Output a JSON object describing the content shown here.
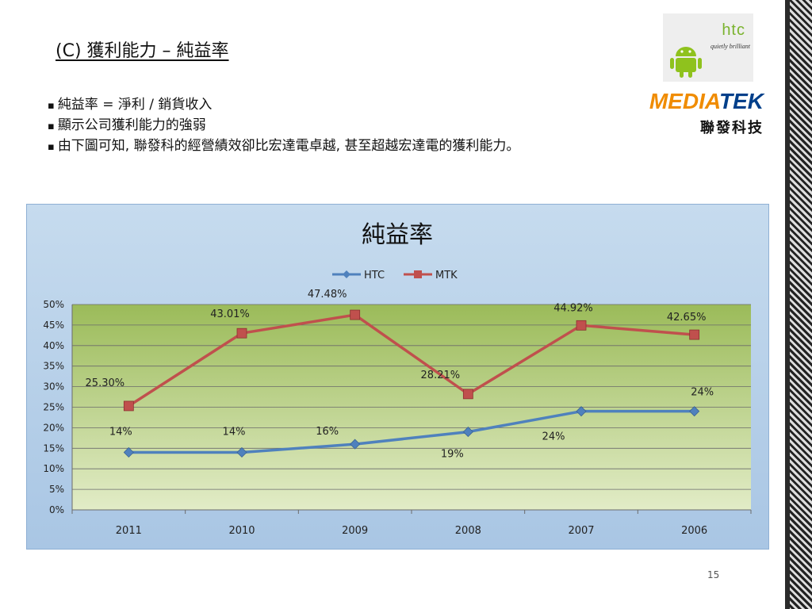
{
  "slide": {
    "title": "(C) 獲利能力 – 純益率",
    "bullets": [
      "純益率 = 淨利 / 銷貨收入",
      "顯示公司獲利能力的強弱",
      "由下圖可知, 聯發科的經營績效卻比宏達電卓越, 甚至超越宏達電的獲利能力。"
    ],
    "page_number": "15"
  },
  "logos": {
    "htc_word": "htc",
    "htc_tagline": "quietly brilliant",
    "mediatek_word_a": "MEDIA",
    "mediatek_word_b": "TEK",
    "mediatek_cn": "聯發科技"
  },
  "chart_data": {
    "type": "line",
    "title": "純益率",
    "categories": [
      "2011",
      "2010",
      "2009",
      "2008",
      "2007",
      "2006"
    ],
    "ylim": [
      0,
      50
    ],
    "yticks": [
      "0%",
      "5%",
      "10%",
      "15%",
      "20%",
      "25%",
      "30%",
      "35%",
      "40%",
      "45%",
      "50%"
    ],
    "legend_position": "top",
    "grid": true,
    "series": [
      {
        "name": "HTC",
        "color": "#4f81bd",
        "values": [
          14,
          14,
          16,
          19,
          24,
          24
        ],
        "labels": [
          "14%",
          "14%",
          "16%",
          "19%",
          "24%",
          "24%"
        ]
      },
      {
        "name": "MTK",
        "color": "#c0504d",
        "values": [
          25.3,
          43.01,
          47.48,
          28.21,
          44.92,
          42.65
        ],
        "labels": [
          "25.30%",
          "43.01%",
          "47.48%",
          "28.21%",
          "44.92%",
          "42.65%"
        ]
      }
    ]
  }
}
